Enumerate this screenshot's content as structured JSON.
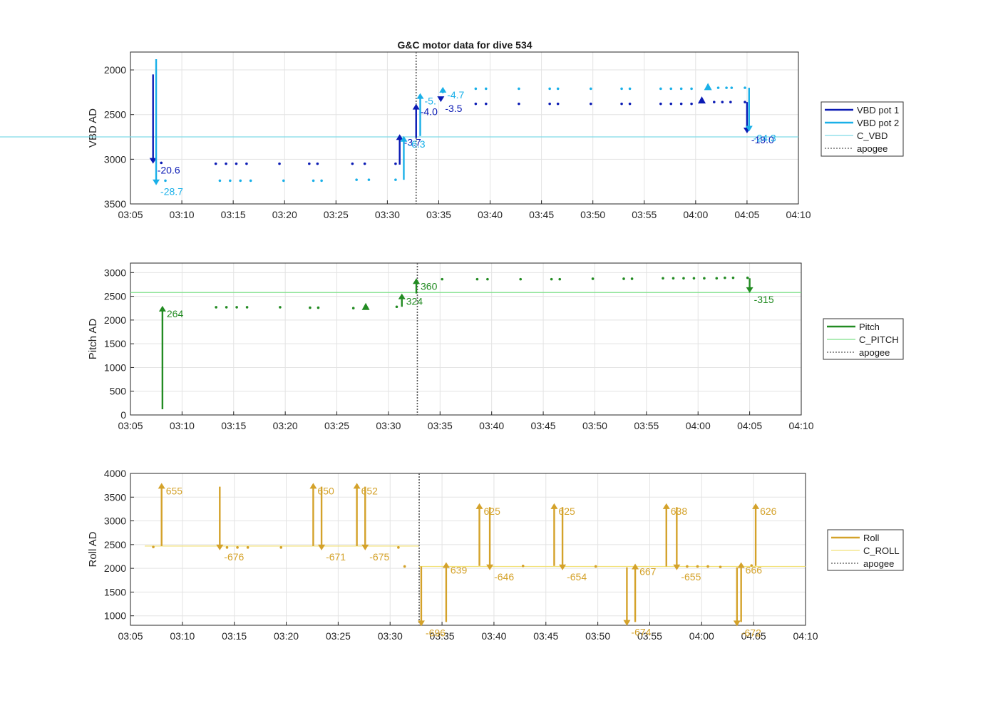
{
  "title": "G&C motor data for dive 534",
  "colors": {
    "vbd1": "#0a1ab4",
    "vbd2": "#1ab0e8",
    "c_vbd": "#7fdbe8",
    "pitch": "#228b22",
    "c_pitch": "#7fe08a",
    "roll": "#d4a22a",
    "c_roll": "#f2e27a",
    "apogee": "#555555"
  },
  "chart_data": [
    {
      "type": "line",
      "title": "G&C motor data for dive 534",
      "xlabel": "",
      "ylabel": "VBD AD",
      "xlim": [
        "03:05",
        "04:10"
      ],
      "ylim": [
        1800,
        3500
      ],
      "y_reversed": true,
      "x_ticks": [
        "03:05",
        "03:10",
        "03:15",
        "03:20",
        "03:25",
        "03:30",
        "03:35",
        "03:40",
        "03:45",
        "03:50",
        "03:55",
        "04:00",
        "04:05",
        "04:10"
      ],
      "y_ticks": [
        2000,
        2500,
        3000,
        3500
      ],
      "grid": true,
      "legend": [
        "VBD pot 1",
        "VBD pot 2",
        "C_VBD",
        "apogee"
      ],
      "legend_position": "outside-right",
      "c_vbd": 2750,
      "apogee": "03:32.8",
      "series": [
        {
          "name": "VBD pot 1",
          "points": [
            [
              "03:08.0",
              3040
            ],
            [
              "03:13.3",
              3050
            ],
            [
              "03:14.3",
              3050
            ],
            [
              "03:15.3",
              3050
            ],
            [
              "03:16.3",
              3050
            ],
            [
              "03:19.5",
              3050
            ],
            [
              "03:22.4",
              3050
            ],
            [
              "03:23.2",
              3050
            ],
            [
              "03:26.6",
              3050
            ],
            [
              "03:27.8",
              3050
            ],
            [
              "03:30.8",
              3050
            ],
            [
              "03:38.6",
              2380
            ],
            [
              "03:39.6",
              2380
            ],
            [
              "03:42.8",
              2380
            ],
            [
              "03:45.8",
              2380
            ],
            [
              "03:46.6",
              2380
            ],
            [
              "03:49.8",
              2380
            ],
            [
              "03:52.8",
              2380
            ],
            [
              "03:53.6",
              2380
            ],
            [
              "03:56.6",
              2380
            ],
            [
              "03:57.6",
              2380
            ],
            [
              "03:58.6",
              2380
            ],
            [
              "03:59.6",
              2380
            ],
            [
              "04:01.8",
              2360
            ],
            [
              "04:02.6",
              2360
            ],
            [
              "04:03.4",
              2360
            ],
            [
              "04:04.8",
              2360
            ]
          ],
          "moves": [
            {
              "t": "03:07.2",
              "from": 2050,
              "to": 3050,
              "label": "-20.6"
            },
            {
              "t": "03:31.2",
              "from": 3060,
              "to": 2720,
              "label": "-3.7"
            },
            {
              "t": "03:32.8",
              "from": 2760,
              "to": 2380,
              "label": "-4.0"
            },
            {
              "t": "03:35.2",
              "from": 2330,
              "to": 2360,
              "label": "-3.5"
            },
            {
              "t": "04:05.0",
              "from": 2360,
              "to": 2710,
              "label": "-19.0"
            }
          ],
          "markers": [
            [
              "04:00.6",
              2340
            ]
          ]
        },
        {
          "name": "VBD pot 2",
          "points": [
            [
              "03:08.4",
              3240
            ],
            [
              "03:13.7",
              3240
            ],
            [
              "03:14.7",
              3240
            ],
            [
              "03:15.7",
              3240
            ],
            [
              "03:16.7",
              3240
            ],
            [
              "03:19.9",
              3240
            ],
            [
              "03:22.8",
              3240
            ],
            [
              "03:23.6",
              3240
            ],
            [
              "03:27.0",
              3230
            ],
            [
              "03:28.2",
              3230
            ],
            [
              "03:30.8",
              3230
            ],
            [
              "03:38.6",
              2210
            ],
            [
              "03:39.6",
              2210
            ],
            [
              "03:42.8",
              2210
            ],
            [
              "03:45.8",
              2210
            ],
            [
              "03:46.6",
              2210
            ],
            [
              "03:49.8",
              2210
            ],
            [
              "03:52.8",
              2210
            ],
            [
              "03:53.6",
              2210
            ],
            [
              "03:56.6",
              2210
            ],
            [
              "03:57.6",
              2210
            ],
            [
              "03:58.6",
              2210
            ],
            [
              "03:59.6",
              2210
            ],
            [
              "04:02.2",
              2200
            ],
            [
              "04:03.0",
              2200
            ],
            [
              "04:03.5",
              2200
            ],
            [
              "04:04.8",
              2200
            ]
          ],
          "moves": [
            {
              "t": "03:07.5",
              "from": 1880,
              "to": 3290,
              "label": "-28.7"
            },
            {
              "t": "03:31.6",
              "from": 3230,
              "to": 2740,
              "label": "-6.3"
            },
            {
              "t": "03:33.2",
              "from": 2740,
              "to": 2260,
              "label": "-5."
            },
            {
              "t": "03:35.4",
              "from": 2260,
              "to": 2190,
              "label": "-4.7"
            },
            {
              "t": "04:05.2",
              "from": 2200,
              "to": 2690,
              "label": "-24.3"
            }
          ],
          "markers": [
            [
              "04:01.2",
              2190
            ]
          ]
        }
      ]
    },
    {
      "type": "line",
      "xlabel": "",
      "ylabel": "Pitch AD",
      "xlim": [
        "03:05",
        "04:10"
      ],
      "ylim": [
        0,
        3200
      ],
      "x_ticks": [
        "03:05",
        "03:10",
        "03:15",
        "03:20",
        "03:25",
        "03:30",
        "03:35",
        "03:40",
        "03:45",
        "03:50",
        "03:55",
        "04:00",
        "04:05",
        "04:10"
      ],
      "y_ticks": [
        0,
        500,
        1000,
        1500,
        2000,
        2500,
        3000
      ],
      "grid": true,
      "legend": [
        "Pitch",
        "C_PITCH",
        "apogee"
      ],
      "legend_position": "outside-right",
      "c_pitch": 2580,
      "apogee": "03:32.8",
      "series": [
        {
          "name": "Pitch",
          "points": [
            [
              "03:13.3",
              2270
            ],
            [
              "03:14.3",
              2270
            ],
            [
              "03:15.3",
              2270
            ],
            [
              "03:16.3",
              2270
            ],
            [
              "03:19.5",
              2270
            ],
            [
              "03:22.4",
              2260
            ],
            [
              "03:23.2",
              2260
            ],
            [
              "03:26.6",
              2250
            ],
            [
              "03:30.8",
              2280
            ],
            [
              "03:35.2",
              2860
            ],
            [
              "03:38.6",
              2860
            ],
            [
              "03:39.6",
              2860
            ],
            [
              "03:42.8",
              2860
            ],
            [
              "03:45.8",
              2860
            ],
            [
              "03:46.6",
              2860
            ],
            [
              "03:49.8",
              2870
            ],
            [
              "03:52.8",
              2870
            ],
            [
              "03:53.6",
              2870
            ],
            [
              "03:56.6",
              2880
            ],
            [
              "03:57.6",
              2880
            ],
            [
              "03:58.6",
              2880
            ],
            [
              "03:59.6",
              2880
            ],
            [
              "04:00.6",
              2880
            ],
            [
              "04:01.8",
              2880
            ],
            [
              "04:02.6",
              2890
            ],
            [
              "04:03.4",
              2890
            ],
            [
              "04:04.8",
              2890
            ]
          ],
          "moves": [
            {
              "t": "03:08.1",
              "from": 120,
              "to": 2300,
              "label": "264"
            },
            {
              "t": "03:31.3",
              "from": 2280,
              "to": 2560,
              "label": "324"
            },
            {
              "t": "03:32.7",
              "from": 2560,
              "to": 2880,
              "label": "360"
            },
            {
              "t": "04:05.0",
              "from": 2880,
              "to": 2570,
              "label": "-315"
            }
          ],
          "markers": [
            [
              "03:27.8",
              2280
            ]
          ]
        }
      ]
    },
    {
      "type": "line",
      "xlabel": "",
      "ylabel": "Roll AD",
      "xlim": [
        "03:05",
        "04:10"
      ],
      "ylim": [
        800,
        4000
      ],
      "x_ticks": [
        "03:05",
        "03:10",
        "03:15",
        "03:20",
        "03:25",
        "03:30",
        "03:35",
        "03:40",
        "03:45",
        "03:50",
        "03:55",
        "04:00",
        "04:05",
        "04:10"
      ],
      "y_ticks": [
        1000,
        1500,
        2000,
        2500,
        3000,
        3500,
        4000
      ],
      "grid": true,
      "legend": [
        "Roll",
        "C_ROLL",
        "apogee"
      ],
      "legend_position": "outside-right",
      "c_roll_before_apogee": 2470,
      "c_roll_after_apogee": 2040,
      "apogee": "03:32.8",
      "series": [
        {
          "name": "Roll",
          "points": [
            [
              "03:07.2",
              2450
            ],
            [
              "03:14.3",
              2440
            ],
            [
              "03:15.3",
              2440
            ],
            [
              "03:16.3",
              2440
            ],
            [
              "03:19.5",
              2440
            ],
            [
              "03:30.8",
              2440
            ],
            [
              "03:31.4",
              2040
            ],
            [
              "03:42.8",
              2050
            ],
            [
              "03:49.8",
              2040
            ],
            [
              "03:58.6",
              2040
            ],
            [
              "03:59.6",
              2040
            ],
            [
              "04:00.6",
              2040
            ],
            [
              "04:01.8",
              2030
            ],
            [
              "04:04.8",
              2060
            ]
          ],
          "moves": [
            {
              "t": "03:08.0",
              "from": 2470,
              "to": 3800,
              "label": "655"
            },
            {
              "t": "03:13.6",
              "from": 3720,
              "to": 2380,
              "label": "-676"
            },
            {
              "t": "03:22.6",
              "from": 2470,
              "to": 3800,
              "label": "650"
            },
            {
              "t": "03:23.4",
              "from": 3720,
              "to": 2380,
              "label": "-671"
            },
            {
              "t": "03:26.8",
              "from": 2470,
              "to": 3800,
              "label": "652"
            },
            {
              "t": "03:27.6",
              "from": 3720,
              "to": 2380,
              "label": "-675"
            },
            {
              "t": "03:33.0",
              "from": 2040,
              "to": 780,
              "label": "-696"
            },
            {
              "t": "03:35.4",
              "from": 870,
              "to": 2130,
              "label": "639"
            },
            {
              "t": "03:38.6",
              "from": 2050,
              "to": 3370,
              "label": "625"
            },
            {
              "t": "03:39.6",
              "from": 3290,
              "to": 1960,
              "label": "-646"
            },
            {
              "t": "03:45.8",
              "from": 2050,
              "to": 3370,
              "label": "625"
            },
            {
              "t": "03:46.6",
              "from": 3290,
              "to": 1960,
              "label": "-654"
            },
            {
              "t": "03:52.8",
              "from": 2020,
              "to": 790,
              "label": "-674"
            },
            {
              "t": "03:53.6",
              "from": 870,
              "to": 2100,
              "label": "667"
            },
            {
              "t": "03:56.6",
              "from": 2040,
              "to": 3370,
              "label": "638"
            },
            {
              "t": "03:57.6",
              "from": 3290,
              "to": 1960,
              "label": "-655"
            },
            {
              "t": "04:03.4",
              "from": 2020,
              "to": 780,
              "label": "-672"
            },
            {
              "t": "04:03.8",
              "from": 870,
              "to": 2130,
              "label": "666"
            },
            {
              "t": "04:05.2",
              "from": 2050,
              "to": 3370,
              "label": "626"
            }
          ]
        }
      ]
    }
  ]
}
